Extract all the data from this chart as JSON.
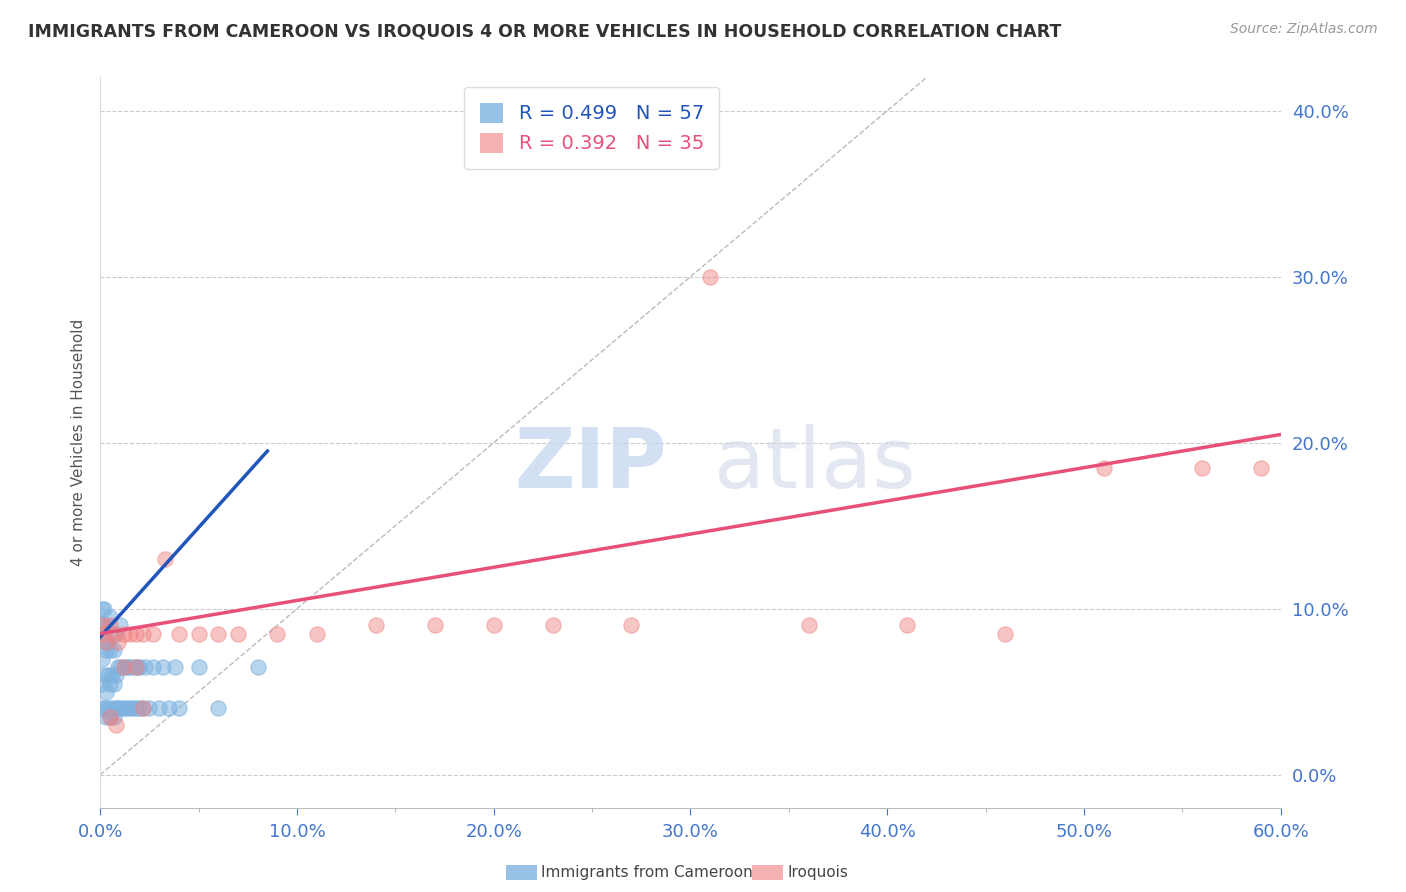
{
  "title": "IMMIGRANTS FROM CAMEROON VS IROQUOIS 4 OR MORE VEHICLES IN HOUSEHOLD CORRELATION CHART",
  "source": "Source: ZipAtlas.com",
  "yaxis_label": "4 or more Vehicles in Household",
  "legend1_label": "Immigrants from Cameroon",
  "legend2_label": "Iroquois",
  "R1": "0.499",
  "N1": "57",
  "R2": "0.392",
  "N2": "35",
  "xlim": [
    0.0,
    0.6
  ],
  "ylim": [
    -0.02,
    0.42
  ],
  "blue_color": "#7EB3E0",
  "pink_color": "#F08080",
  "blue_trend_color": "#2255BB",
  "pink_trend_color": "#E8507A",
  "watermark_zip": "ZIP",
  "watermark_atlas": "atlas",
  "blue_dots_x": [
    0.001,
    0.001,
    0.001,
    0.001,
    0.001,
    0.002,
    0.002,
    0.002,
    0.002,
    0.003,
    0.003,
    0.003,
    0.003,
    0.004,
    0.004,
    0.004,
    0.005,
    0.005,
    0.005,
    0.005,
    0.006,
    0.006,
    0.007,
    0.007,
    0.007,
    0.008,
    0.008,
    0.008,
    0.009,
    0.009,
    0.01,
    0.01,
    0.01,
    0.012,
    0.012,
    0.013,
    0.014,
    0.015,
    0.015,
    0.016,
    0.017,
    0.018,
    0.019,
    0.02,
    0.02,
    0.022,
    0.023,
    0.025,
    0.027,
    0.03,
    0.032,
    0.035,
    0.038,
    0.04,
    0.05,
    0.06,
    0.08
  ],
  "blue_dots_y": [
    0.04,
    0.055,
    0.07,
    0.09,
    0.1,
    0.04,
    0.06,
    0.08,
    0.1,
    0.035,
    0.05,
    0.075,
    0.09,
    0.04,
    0.06,
    0.08,
    0.035,
    0.055,
    0.075,
    0.095,
    0.04,
    0.06,
    0.035,
    0.055,
    0.075,
    0.04,
    0.06,
    0.085,
    0.04,
    0.065,
    0.04,
    0.065,
    0.09,
    0.04,
    0.065,
    0.04,
    0.065,
    0.04,
    0.065,
    0.04,
    0.065,
    0.04,
    0.065,
    0.04,
    0.065,
    0.04,
    0.065,
    0.04,
    0.065,
    0.04,
    0.065,
    0.04,
    0.065,
    0.04,
    0.065,
    0.04,
    0.065
  ],
  "pink_dots_x": [
    0.001,
    0.002,
    0.003,
    0.005,
    0.007,
    0.009,
    0.012,
    0.015,
    0.018,
    0.022,
    0.027,
    0.033,
    0.04,
    0.05,
    0.06,
    0.07,
    0.09,
    0.11,
    0.14,
    0.17,
    0.2,
    0.23,
    0.27,
    0.31,
    0.36,
    0.41,
    0.46,
    0.51,
    0.56,
    0.59,
    0.005,
    0.008,
    0.012,
    0.018,
    0.022
  ],
  "pink_dots_y": [
    0.09,
    0.085,
    0.08,
    0.09,
    0.085,
    0.08,
    0.085,
    0.085,
    0.085,
    0.085,
    0.085,
    0.13,
    0.085,
    0.085,
    0.085,
    0.085,
    0.085,
    0.085,
    0.09,
    0.09,
    0.09,
    0.09,
    0.09,
    0.3,
    0.09,
    0.09,
    0.085,
    0.185,
    0.185,
    0.185,
    0.035,
    0.03,
    0.065,
    0.065,
    0.04
  ],
  "blue_trend_x": [
    0.0,
    0.085
  ],
  "blue_trend_y": [
    0.083,
    0.195
  ],
  "pink_trend_x": [
    0.0,
    0.6
  ],
  "pink_trend_y": [
    0.085,
    0.205
  ],
  "diag_line_x": [
    0.0,
    0.42
  ],
  "diag_line_y": [
    0.0,
    0.42
  ]
}
